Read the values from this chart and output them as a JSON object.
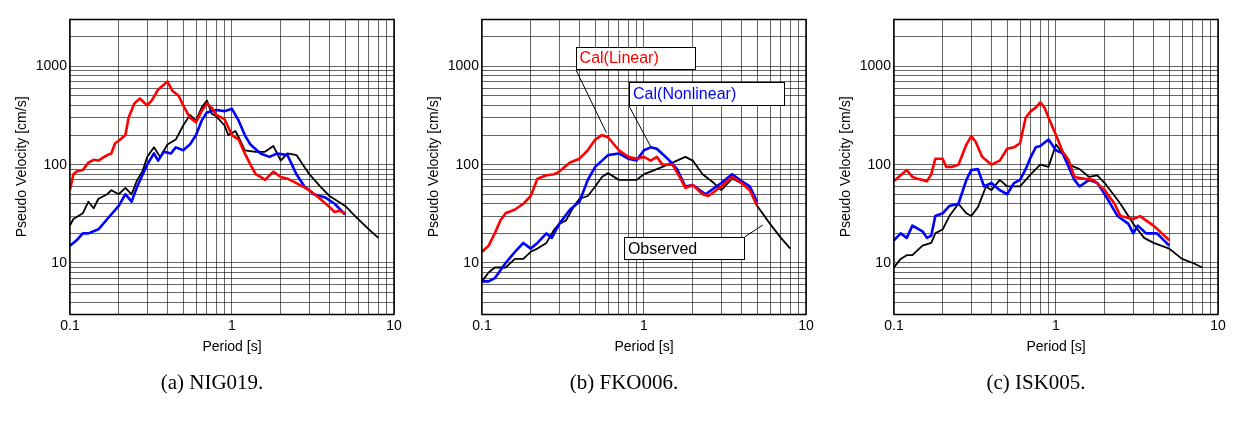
{
  "chart_data": [
    {
      "type": "line",
      "title": "(a) NIG019.",
      "xlabel": "Period [s]",
      "ylabel": "Pseudo Velocity [cm/s]",
      "log": "xy",
      "grid": true,
      "legend": false,
      "marker": "none",
      "line_style": "solid",
      "xlim": [
        0.1,
        10
      ],
      "ylim": [
        3,
        3000
      ],
      "xticks": [
        0.1,
        {
          "value": 0.2,
          "label": null
        },
        {
          "value": 0.3,
          "label": null
        },
        {
          "value": 0.4,
          "label": null
        },
        {
          "value": 0.5,
          "label": null
        },
        {
          "value": 0.6,
          "label": null
        },
        {
          "value": 0.7,
          "label": null
        },
        {
          "value": 0.8,
          "label": null
        },
        {
          "value": 0.9,
          "label": null
        },
        1,
        {
          "value": 2,
          "label": null
        },
        {
          "value": 3,
          "label": null
        },
        {
          "value": 4,
          "label": null
        },
        {
          "value": 5,
          "label": null
        },
        {
          "value": 6,
          "label": null
        },
        {
          "value": 7,
          "label": null
        },
        {
          "value": 8,
          "label": null
        },
        {
          "value": 9,
          "label": null
        },
        10
      ],
      "yticks": [
        {
          "value": 3,
          "label": null
        },
        {
          "value": 4,
          "label": null
        },
        {
          "value": 5,
          "label": null
        },
        {
          "value": 6,
          "label": null
        },
        {
          "value": 7,
          "label": null
        },
        {
          "value": 8,
          "label": null
        },
        {
          "value": 9,
          "label": null
        },
        10,
        {
          "value": 20,
          "label": null
        },
        {
          "value": 30,
          "label": null
        },
        {
          "value": 40,
          "label": null
        },
        {
          "value": 50,
          "label": null
        },
        {
          "value": 60,
          "label": null
        },
        {
          "value": 70,
          "label": null
        },
        {
          "value": 80,
          "label": null
        },
        {
          "value": 90,
          "label": null
        },
        100,
        {
          "value": 200,
          "label": null
        },
        {
          "value": 300,
          "label": null
        },
        {
          "value": 400,
          "label": null
        },
        {
          "value": 500,
          "label": null
        },
        {
          "value": 600,
          "label": null
        },
        {
          "value": 700,
          "label": null
        },
        {
          "value": 800,
          "label": null
        },
        {
          "value": 900,
          "label": null
        },
        1000,
        {
          "value": 2000,
          "label": null
        },
        {
          "value": 3000,
          "label": null
        }
      ],
      "series": [
        {
          "color": "#ff0000",
          "x": [
            0.1,
            0.105,
            0.11,
            0.12,
            0.13,
            0.14,
            0.15,
            0.16,
            0.17,
            0.18,
            0.19,
            0.2,
            0.22,
            0.23,
            0.25,
            0.27,
            0.3,
            0.32,
            0.35,
            0.38,
            0.4,
            0.43,
            0.47,
            0.5,
            0.55,
            0.6,
            0.65,
            0.7,
            0.75,
            0.8,
            0.9,
            1.0,
            1.1,
            1.2,
            1.3,
            1.4,
            1.5,
            1.6,
            1.8,
            2.0,
            2.2,
            2.5,
            3.0,
            3.5,
            4.0,
            4.3,
            4.6,
            5.0
          ],
          "values": [
            55,
            80,
            85,
            88,
            105,
            112,
            110,
            118,
            125,
            130,
            165,
            175,
            200,
            300,
            420,
            470,
            400,
            450,
            580,
            650,
            700,
            560,
            500,
            400,
            300,
            270,
            350,
            420,
            380,
            320,
            290,
            200,
            180,
            130,
            100,
            80,
            75,
            70,
            85,
            75,
            72,
            65,
            55,
            45,
            37,
            33,
            34,
            32
          ]
        },
        {
          "color": "#0000ff",
          "x": [
            0.1,
            0.11,
            0.12,
            0.13,
            0.15,
            0.17,
            0.2,
            0.22,
            0.24,
            0.26,
            0.3,
            0.33,
            0.35,
            0.38,
            0.42,
            0.45,
            0.5,
            0.55,
            0.6,
            0.65,
            0.7,
            0.8,
            0.9,
            1.0,
            1.1,
            1.2,
            1.3,
            1.5,
            1.7,
            1.9,
            2.2,
            2.5,
            2.8,
            3.2,
            3.8,
            4.3,
            5.0
          ],
          "values": [
            15,
            17,
            20,
            20,
            22,
            28,
            38,
            50,
            42,
            60,
            100,
            130,
            110,
            135,
            130,
            150,
            140,
            160,
            200,
            280,
            340,
            360,
            350,
            370,
            280,
            200,
            160,
            130,
            120,
            130,
            125,
            80,
            60,
            50,
            46,
            40,
            31
          ]
        },
        {
          "color": "#000000",
          "x": [
            0.1,
            0.105,
            0.12,
            0.13,
            0.14,
            0.15,
            0.17,
            0.18,
            0.2,
            0.22,
            0.24,
            0.26,
            0.28,
            0.3,
            0.33,
            0.36,
            0.4,
            0.45,
            0.5,
            0.55,
            0.6,
            0.65,
            0.7,
            0.75,
            0.8,
            0.9,
            0.95,
            1.0,
            1.05,
            1.1,
            1.2,
            1.4,
            1.6,
            1.8,
            2.0,
            2.2,
            2.5,
            3.0,
            3.5,
            4.0,
            5.0,
            6.0,
            7.0,
            8.0
          ],
          "values": [
            24,
            28,
            32,
            42,
            36,
            45,
            50,
            55,
            50,
            58,
            50,
            70,
            85,
            120,
            150,
            120,
            160,
            180,
            250,
            320,
            280,
            380,
            450,
            330,
            310,
            250,
            200,
            210,
            220,
            190,
            140,
            135,
            135,
            155,
            110,
            130,
            125,
            80,
            60,
            48,
            38,
            28,
            22,
            18
          ]
        }
      ]
    },
    {
      "type": "line",
      "title": "(b) FKO006.",
      "xlabel": "Period [s]",
      "ylabel": "Pseudo Velocity [cm/s]",
      "log": "xy",
      "grid": true,
      "legend": false,
      "marker": "none",
      "line_style": "solid",
      "xlim": [
        0.1,
        10
      ],
      "ylim": [
        3,
        3000
      ],
      "xticks": [
        0.1,
        {
          "value": 0.2,
          "label": null
        },
        {
          "value": 0.3,
          "label": null
        },
        {
          "value": 0.4,
          "label": null
        },
        {
          "value": 0.5,
          "label": null
        },
        {
          "value": 0.6,
          "label": null
        },
        {
          "value": 0.7,
          "label": null
        },
        {
          "value": 0.8,
          "label": null
        },
        {
          "value": 0.9,
          "label": null
        },
        1,
        {
          "value": 2,
          "label": null
        },
        {
          "value": 3,
          "label": null
        },
        {
          "value": 4,
          "label": null
        },
        {
          "value": 5,
          "label": null
        },
        {
          "value": 6,
          "label": null
        },
        {
          "value": 7,
          "label": null
        },
        {
          "value": 8,
          "label": null
        },
        {
          "value": 9,
          "label": null
        },
        10
      ],
      "yticks": [
        {
          "value": 3,
          "label": null
        },
        {
          "value": 4,
          "label": null
        },
        {
          "value": 5,
          "label": null
        },
        {
          "value": 6,
          "label": null
        },
        {
          "value": 7,
          "label": null
        },
        {
          "value": 8,
          "label": null
        },
        {
          "value": 9,
          "label": null
        },
        10,
        {
          "value": 20,
          "label": null
        },
        {
          "value": 30,
          "label": null
        },
        {
          "value": 40,
          "label": null
        },
        {
          "value": 50,
          "label": null
        },
        {
          "value": 60,
          "label": null
        },
        {
          "value": 70,
          "label": null
        },
        {
          "value": 80,
          "label": null
        },
        {
          "value": 90,
          "label": null
        },
        100,
        {
          "value": 200,
          "label": null
        },
        {
          "value": 300,
          "label": null
        },
        {
          "value": 400,
          "label": null
        },
        {
          "value": 500,
          "label": null
        },
        {
          "value": 600,
          "label": null
        },
        {
          "value": 700,
          "label": null
        },
        {
          "value": 800,
          "label": null
        },
        {
          "value": 900,
          "label": null
        },
        1000,
        {
          "value": 2000,
          "label": null
        },
        {
          "value": 3000,
          "label": null
        }
      ],
      "series": [
        {
          "name": "Cal(Linear)",
          "color": "#ff0000",
          "x": [
            0.1,
            0.11,
            0.12,
            0.13,
            0.14,
            0.16,
            0.18,
            0.2,
            0.22,
            0.25,
            0.28,
            0.3,
            0.35,
            0.4,
            0.45,
            0.5,
            0.55,
            0.6,
            0.7,
            0.8,
            0.9,
            1.0,
            1.1,
            1.2,
            1.3,
            1.5,
            1.7,
            1.8,
            2.0,
            2.3,
            2.5,
            3.0,
            3.5,
            4.0,
            4.5,
            5.0
          ],
          "values": [
            13,
            15,
            20,
            27,
            32,
            35,
            40,
            48,
            72,
            78,
            80,
            85,
            105,
            115,
            140,
            180,
            200,
            190,
            140,
            120,
            115,
            120,
            110,
            120,
            100,
            100,
            70,
            58,
            62,
            50,
            48,
            60,
            75,
            65,
            55,
            38
          ]
        },
        {
          "name": "Cal(Nonlinear)",
          "color": "#0000ff",
          "x": [
            0.1,
            0.11,
            0.12,
            0.14,
            0.16,
            0.18,
            0.2,
            0.22,
            0.25,
            0.27,
            0.3,
            0.35,
            0.4,
            0.45,
            0.5,
            0.6,
            0.7,
            0.8,
            0.9,
            1.0,
            1.1,
            1.2,
            1.4,
            1.6,
            1.8,
            2.0,
            2.4,
            3.0,
            3.5,
            4.0,
            4.5,
            5.0
          ],
          "values": [
            6.5,
            6.5,
            7,
            10,
            13,
            16,
            14,
            16,
            20,
            18,
            25,
            35,
            42,
            70,
            95,
            125,
            130,
            115,
            110,
            140,
            150,
            145,
            115,
            90,
            60,
            62,
            50,
            65,
            80,
            68,
            60,
            42
          ]
        },
        {
          "name": "Observed",
          "color": "#000000",
          "x": [
            0.1,
            0.11,
            0.12,
            0.14,
            0.16,
            0.18,
            0.2,
            0.22,
            0.25,
            0.28,
            0.3,
            0.33,
            0.37,
            0.4,
            0.45,
            0.5,
            0.55,
            0.6,
            0.7,
            0.8,
            0.9,
            1.0,
            1.1,
            1.3,
            1.5,
            1.8,
            2.0,
            2.3,
            2.7,
            3.0,
            3.5,
            4.0,
            4.5,
            5.0,
            6.0,
            7.0,
            8.0
          ],
          "values": [
            6.5,
            8,
            9,
            9,
            11,
            11,
            13,
            14,
            16,
            22,
            25,
            27,
            38,
            45,
            48,
            60,
            75,
            82,
            70,
            70,
            70,
            80,
            85,
            95,
            105,
            120,
            110,
            80,
            65,
            55,
            72,
            65,
            55,
            38,
            25,
            18,
            14
          ]
        }
      ]
    },
    {
      "type": "line",
      "title": "(c) ISK005.",
      "xlabel": "Period [s]",
      "ylabel": "Pseudo Velocity [cm/s]",
      "log": "xy",
      "grid": true,
      "legend": false,
      "marker": "none",
      "line_style": "solid",
      "xlim": [
        0.1,
        10
      ],
      "ylim": [
        3,
        3000
      ],
      "xticks": [
        0.1,
        {
          "value": 0.2,
          "label": null
        },
        {
          "value": 0.3,
          "label": null
        },
        {
          "value": 0.4,
          "label": null
        },
        {
          "value": 0.5,
          "label": null
        },
        {
          "value": 0.6,
          "label": null
        },
        {
          "value": 0.7,
          "label": null
        },
        {
          "value": 0.8,
          "label": null
        },
        {
          "value": 0.9,
          "label": null
        },
        1,
        {
          "value": 2,
          "label": null
        },
        {
          "value": 3,
          "label": null
        },
        {
          "value": 4,
          "label": null
        },
        {
          "value": 5,
          "label": null
        },
        {
          "value": 6,
          "label": null
        },
        {
          "value": 7,
          "label": null
        },
        {
          "value": 8,
          "label": null
        },
        {
          "value": 9,
          "label": null
        },
        10
      ],
      "yticks": [
        {
          "value": 3,
          "label": null
        },
        {
          "value": 4,
          "label": null
        },
        {
          "value": 5,
          "label": null
        },
        {
          "value": 6,
          "label": null
        },
        {
          "value": 7,
          "label": null
        },
        {
          "value": 8,
          "label": null
        },
        {
          "value": 9,
          "label": null
        },
        10,
        {
          "value": 20,
          "label": null
        },
        {
          "value": 30,
          "label": null
        },
        {
          "value": 40,
          "label": null
        },
        {
          "value": 50,
          "label": null
        },
        {
          "value": 60,
          "label": null
        },
        {
          "value": 70,
          "label": null
        },
        {
          "value": 80,
          "label": null
        },
        {
          "value": 90,
          "label": null
        },
        100,
        {
          "value": 200,
          "label": null
        },
        {
          "value": 300,
          "label": null
        },
        {
          "value": 400,
          "label": null
        },
        {
          "value": 500,
          "label": null
        },
        {
          "value": 600,
          "label": null
        },
        {
          "value": 700,
          "label": null
        },
        {
          "value": 800,
          "label": null
        },
        {
          "value": 900,
          "label": null
        },
        1000,
        {
          "value": 2000,
          "label": null
        },
        {
          "value": 3000,
          "label": null
        }
      ],
      "series": [
        {
          "color": "#ff0000",
          "x": [
            0.1,
            0.11,
            0.12,
            0.13,
            0.14,
            0.16,
            0.17,
            0.18,
            0.2,
            0.21,
            0.23,
            0.25,
            0.28,
            0.3,
            0.32,
            0.35,
            0.4,
            0.45,
            0.5,
            0.55,
            0.6,
            0.65,
            0.7,
            0.75,
            0.8,
            0.85,
            0.9,
            1.0,
            1.1,
            1.2,
            1.3,
            1.5,
            1.7,
            2.0,
            2.3,
            2.5,
            3.0,
            3.3,
            4.0,
            5.0
          ],
          "values": [
            68,
            78,
            88,
            75,
            72,
            68,
            80,
            115,
            115,
            95,
            95,
            100,
            160,
            195,
            170,
            120,
            100,
            110,
            145,
            150,
            165,
            300,
            350,
            380,
            430,
            380,
            300,
            200,
            135,
            110,
            75,
            72,
            70,
            55,
            40,
            30,
            28,
            30,
            24,
            17
          ]
        },
        {
          "color": "#0000ff",
          "x": [
            0.1,
            0.11,
            0.12,
            0.13,
            0.15,
            0.16,
            0.17,
            0.18,
            0.2,
            0.22,
            0.25,
            0.28,
            0.3,
            0.33,
            0.36,
            0.4,
            0.45,
            0.5,
            0.55,
            0.6,
            0.65,
            0.7,
            0.75,
            0.8,
            0.9,
            1.0,
            1.1,
            1.3,
            1.4,
            1.6,
            1.8,
            2.0,
            2.4,
            2.8,
            3.0,
            3.2,
            3.6,
            4.2,
            5.0
          ],
          "values": [
            17,
            20,
            18,
            24,
            21,
            18,
            19,
            30,
            32,
            38,
            40,
            70,
            88,
            90,
            60,
            65,
            55,
            50,
            65,
            70,
            90,
            120,
            150,
            155,
            180,
            140,
            130,
            70,
            60,
            70,
            65,
            50,
            30,
            25,
            20,
            24,
            20,
            20,
            15
          ]
        },
        {
          "color": "#000000",
          "x": [
            0.1,
            0.11,
            0.12,
            0.13,
            0.15,
            0.17,
            0.18,
            0.2,
            0.22,
            0.25,
            0.28,
            0.3,
            0.33,
            0.37,
            0.4,
            0.45,
            0.5,
            0.6,
            0.7,
            0.8,
            0.9,
            1.0,
            1.1,
            1.2,
            1.4,
            1.6,
            1.8,
            2.0,
            2.5,
            3.0,
            3.5,
            4.0,
            5.0,
            6.0,
            7.0,
            8.0
          ],
          "values": [
            9,
            11,
            12,
            12,
            15,
            16,
            20,
            22,
            30,
            40,
            32,
            30,
            37,
            60,
            55,
            70,
            60,
            60,
            80,
            100,
            95,
            160,
            130,
            100,
            90,
            75,
            78,
            65,
            40,
            25,
            18,
            16,
            14,
            11,
            10,
            9
          ]
        }
      ]
    }
  ]
}
